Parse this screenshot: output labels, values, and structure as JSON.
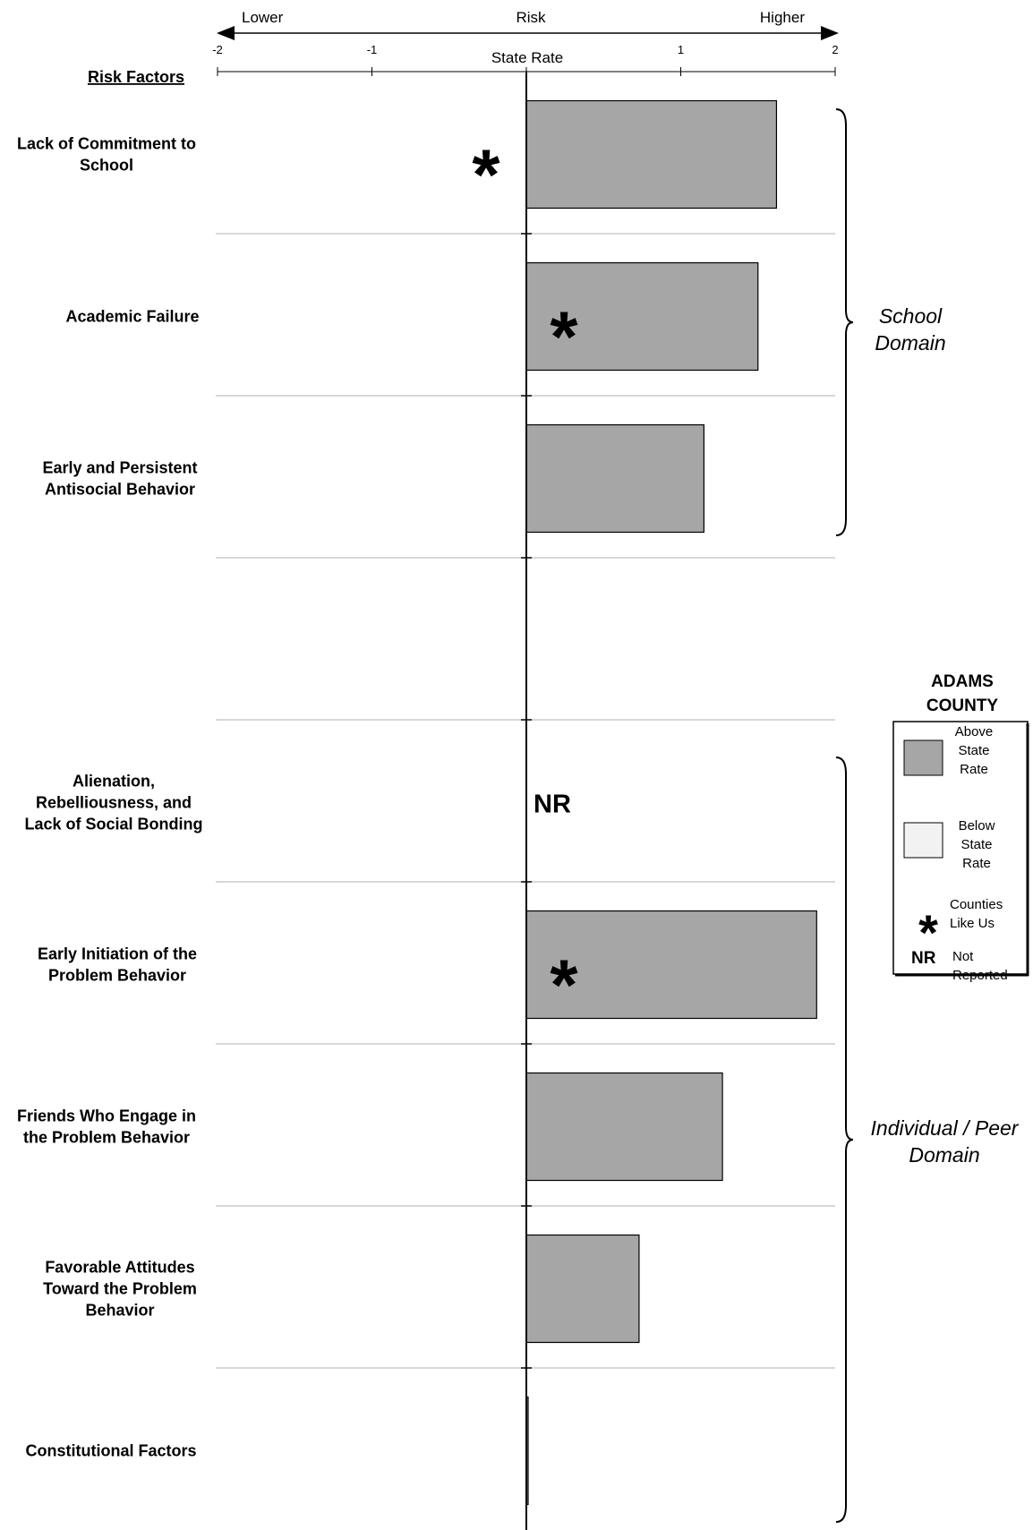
{
  "chart_data": {
    "type": "bar",
    "orientation": "horizontal",
    "axis": {
      "top_labels": [
        "Lower",
        "Risk",
        "Higher"
      ],
      "center_label": "State Rate",
      "ticks": [
        -2,
        -1,
        1,
        2
      ],
      "xlim": [
        -2,
        2
      ]
    },
    "row_header": "Risk Factors",
    "rows": [
      {
        "label": "Lack of Commitment to School",
        "value": 1.62,
        "star": true,
        "star_position": "left",
        "nr": false
      },
      {
        "label": "Academic Failure",
        "value": 1.5,
        "star": true,
        "star_position": "on-bar",
        "nr": false
      },
      {
        "label": "Early and Persistent Antisocial Behavior",
        "value": 1.15,
        "star": false,
        "nr": false
      },
      {
        "label": "",
        "value": null,
        "star": false,
        "nr": false
      },
      {
        "label": "Alienation, Rebelliousness, and Lack of Social Bonding",
        "value": null,
        "star": false,
        "nr": true
      },
      {
        "label": "Early Initiation of the Problem Behavior",
        "value": 1.88,
        "star": true,
        "star_position": "on-bar",
        "nr": false
      },
      {
        "label": "Friends Who Engage in the Problem Behavior",
        "value": 1.27,
        "star": false,
        "nr": false
      },
      {
        "label": "Favorable Attitudes Toward the Problem Behavior",
        "value": 0.73,
        "star": false,
        "nr": false
      },
      {
        "label": "Constitutional Factors",
        "value": 0.01,
        "star": false,
        "nr": false
      }
    ],
    "domains": [
      {
        "name": "School Domain",
        "rows": [
          0,
          2
        ]
      },
      {
        "name": "Individual / Peer Domain",
        "rows": [
          4,
          8
        ]
      }
    ],
    "nr_text": "NR",
    "legend": {
      "title": "ADAMS COUNTY",
      "items": [
        {
          "label": "Above State Rate",
          "swatch": "#a6a6a6"
        },
        {
          "label": "Below State Rate",
          "swatch": "#f2f2f2"
        },
        {
          "label": "Counties Like Us",
          "symbol": "*"
        },
        {
          "label": "Not Reported",
          "symbol": "NR"
        }
      ]
    },
    "colors": {
      "above": "#a6a6a6",
      "below": "#f2f2f2",
      "grid": "#c0c0c0"
    }
  }
}
